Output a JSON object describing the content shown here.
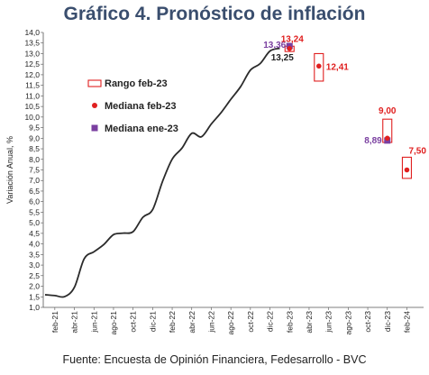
{
  "title": "Gráfico 4. Pronóstico de inflación",
  "source": "Fuente: Encuesta de Opinión Financiera, Fedesarrollo - BVC",
  "colors": {
    "line": "#2b2b2b",
    "rango": "#e02020",
    "mediana_feb": "#e02020",
    "mediana_ene": "#7a3fa0"
  },
  "chart_data": {
    "type": "line",
    "ylabel": "Variación Anual, %",
    "ylim": [
      1.0,
      14.0
    ],
    "yticks": [
      "1,0",
      "1,5",
      "2,0",
      "2,5",
      "3,0",
      "3,5",
      "4,0",
      "4,5",
      "5,0",
      "5,5",
      "6,0",
      "6,5",
      "7,0",
      "7,5",
      "8,0",
      "8,5",
      "9,0",
      "9,5",
      "10,0",
      "10,5",
      "11,0",
      "11,5",
      "12,0",
      "12,5",
      "13,0",
      "13,5",
      "14,0"
    ],
    "xticks": [
      "feb-21",
      "abr-21",
      "jun-21",
      "ago-21",
      "oct-21",
      "dic-21",
      "feb-22",
      "abr-22",
      "jun-22",
      "ago-22",
      "oct-22",
      "dic-22",
      "feb-23",
      "abr-23",
      "jun-23",
      "ago-23",
      "oct-23",
      "dic-23",
      "feb-24"
    ],
    "series": [
      {
        "name": "",
        "x": [
          "ene-21",
          "feb-21",
          "mar-21",
          "abr-21",
          "may-21",
          "jun-21",
          "jul-21",
          "ago-21",
          "sep-21",
          "oct-21",
          "nov-21",
          "dic-21",
          "ene-22",
          "feb-22",
          "mar-22",
          "abr-22",
          "may-22",
          "jun-22",
          "jul-22",
          "ago-22",
          "sep-22",
          "oct-22",
          "nov-22",
          "dic-22",
          "ene-23"
        ],
        "values": [
          1.6,
          1.56,
          1.51,
          1.95,
          3.3,
          3.63,
          3.97,
          4.44,
          4.51,
          4.58,
          5.26,
          5.62,
          6.94,
          8.01,
          8.53,
          9.23,
          9.07,
          9.67,
          10.21,
          10.84,
          11.44,
          12.22,
          12.53,
          13.12,
          13.25
        ]
      }
    ],
    "legend": [
      {
        "label": "Rango feb-23",
        "marker": "rect"
      },
      {
        "label": "Mediana feb-23",
        "marker": "circle"
      },
      {
        "label": "Mediana ene-23",
        "marker": "square"
      }
    ],
    "forecasts": [
      {
        "x": "feb-23",
        "range": [
          13.1,
          13.35
        ],
        "mediana_feb": 13.24,
        "mediana_ene": 13.36,
        "label_feb": "13,24",
        "label_ene": "13,36",
        "label_actual": "13,25"
      },
      {
        "x": "may-23",
        "range": [
          11.7,
          13.0
        ],
        "mediana_feb": 12.41,
        "label_feb": "12,41"
      },
      {
        "x": "dic-23",
        "range": [
          8.8,
          9.9
        ],
        "mediana_feb": 9.0,
        "mediana_ene": 8.89,
        "label_feb": "9,00",
        "label_ene": "8,89"
      },
      {
        "x": "feb-24",
        "range": [
          7.1,
          8.1
        ],
        "mediana_feb": 7.5,
        "label_feb": "7,50"
      }
    ]
  }
}
